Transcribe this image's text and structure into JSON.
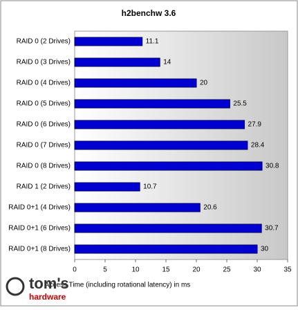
{
  "chart_data": {
    "type": "bar",
    "orientation": "horizontal",
    "title": "h2benchw 3.6",
    "categories": [
      "RAID 0 (2 Drives)",
      "RAID 0 (3 Drives)",
      "RAID 0 (4 Drives)",
      "RAID 0 (5 Drives)",
      "RAID 0 (6 Drives)",
      "RAID 0 (7 Drives)",
      "RAID 0 (8 Drives)",
      "RAID 1 (2 Drives)",
      "RAID 0+1 (4 Drives)",
      "RAID 0+1 (6 Drives)",
      "RAID 0+1 (8 Drives)"
    ],
    "values": [
      11.1,
      14,
      20,
      25.5,
      27.9,
      28.4,
      30.8,
      10.7,
      20.6,
      30.7,
      30
    ],
    "color": "#0000d0",
    "xlim": [
      0,
      35
    ],
    "xticks": [
      0,
      5,
      10,
      15,
      20,
      25,
      30,
      35
    ],
    "x_label": "Access Time (including rotational latency) in ms",
    "grid": false
  },
  "logo": {
    "line1": "tom's",
    "line2": "hardware"
  }
}
